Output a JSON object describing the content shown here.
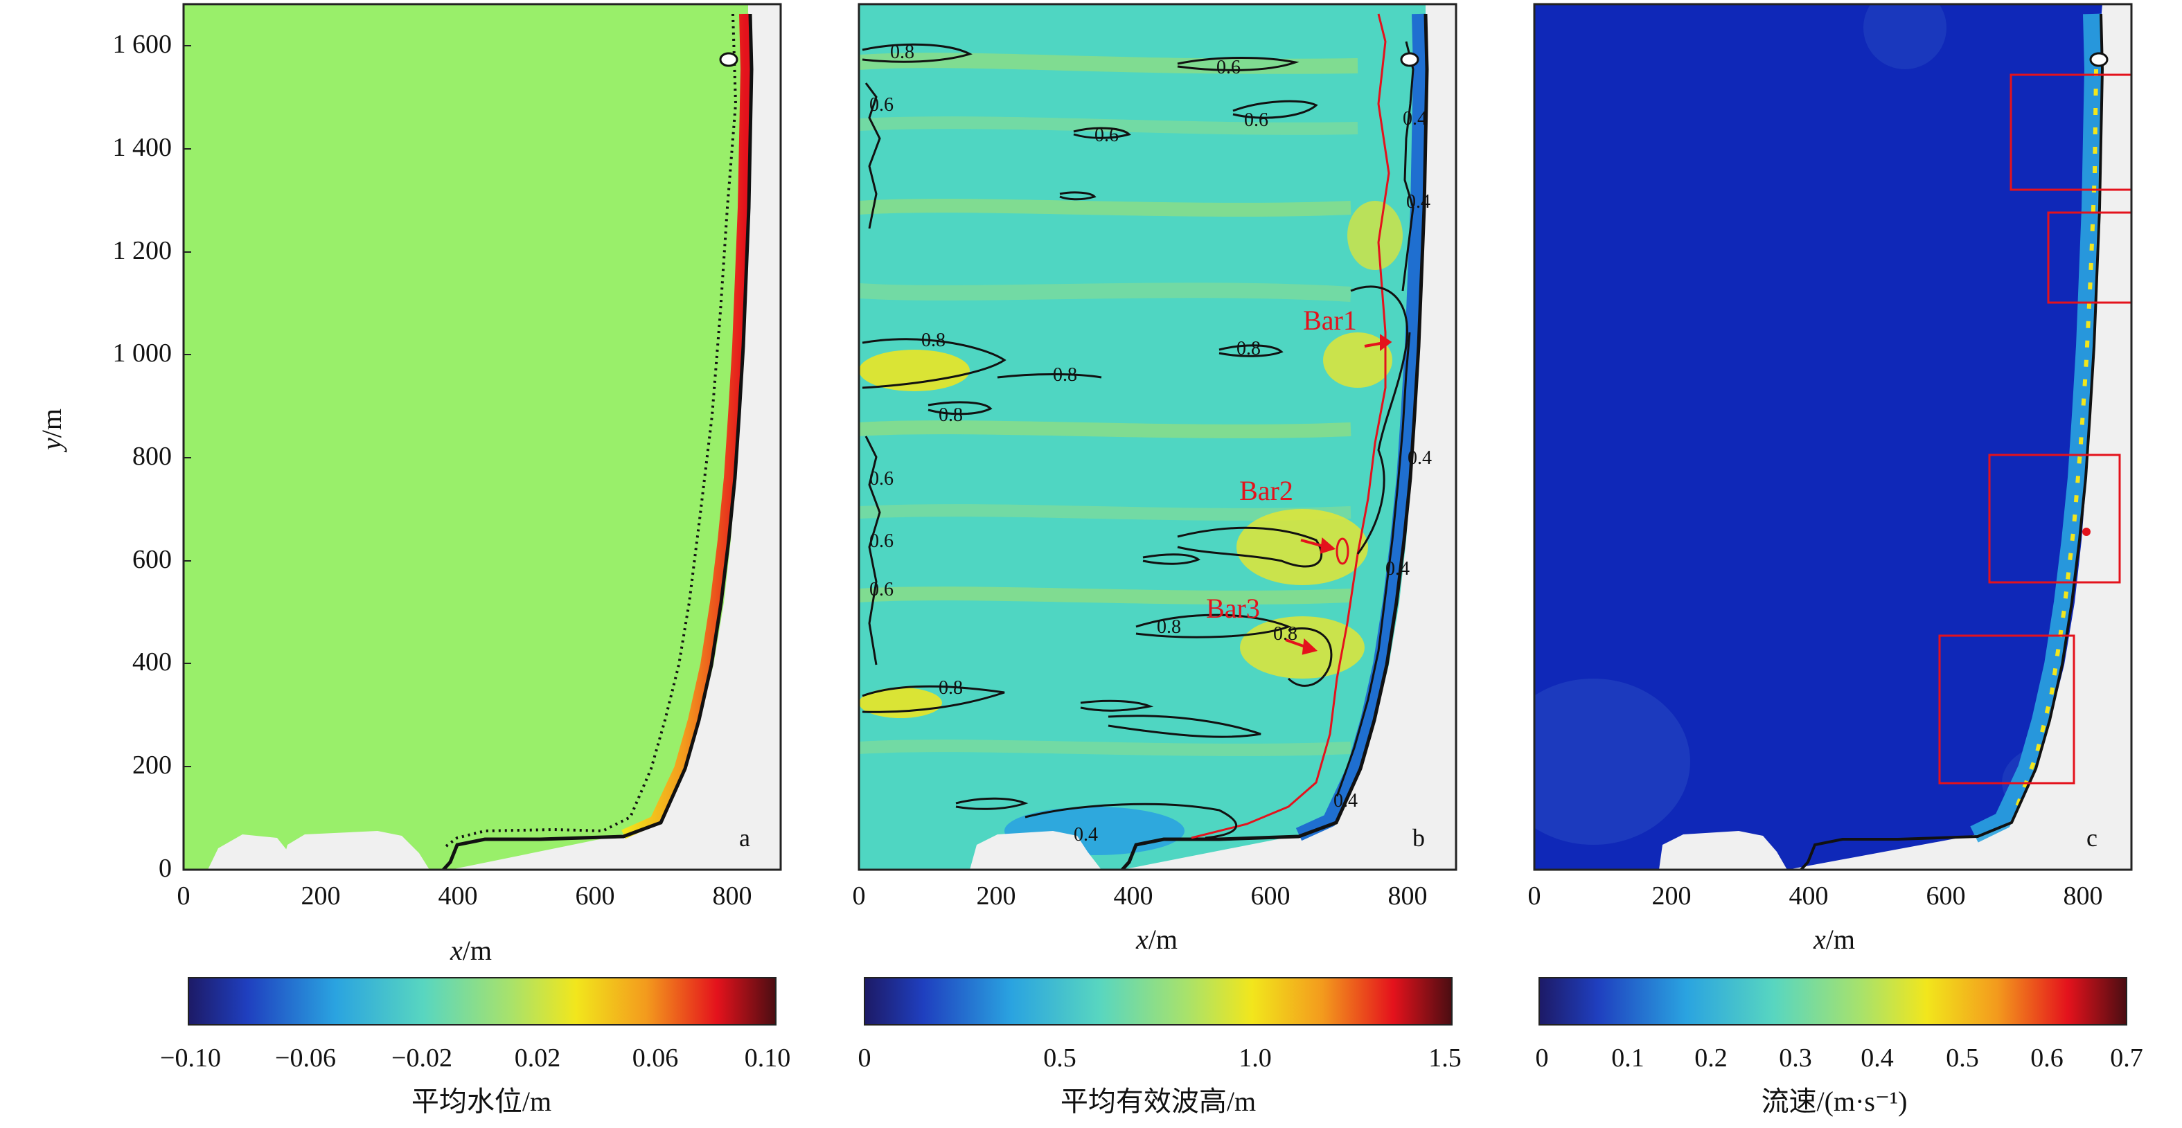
{
  "chart_data": [
    {
      "type": "heatmap",
      "panel_label": "a",
      "xlabel_var": "x",
      "xlabel_unit": "/m",
      "ylabel_var": "y",
      "ylabel_unit": "/m",
      "xlim": [
        0,
        870
      ],
      "ylim": [
        0,
        1690
      ],
      "x_ticks": [
        "0",
        "200",
        "400",
        "600",
        "800"
      ],
      "y_ticks": [
        "0",
        "200",
        "400",
        "600",
        "800",
        "1 000",
        "1 200",
        "1 400",
        "1 600"
      ],
      "background_color": "#99ef6a",
      "colorbar": {
        "label": "平均水位/m",
        "range": [
          -0.1,
          0.1
        ],
        "tick_labels": [
          "−0.10",
          "−0.06",
          "−0.02",
          "0.02",
          "0.06",
          "0.10"
        ]
      }
    },
    {
      "type": "heatmap",
      "panel_label": "b",
      "xlabel_var": "x",
      "xlabel_unit": "/m",
      "xlim": [
        0,
        870
      ],
      "ylim": [
        0,
        1690
      ],
      "x_ticks": [
        "0",
        "200",
        "400",
        "600",
        "800"
      ],
      "background_color": "#4fd6c2",
      "contour_labels": [
        "0.8",
        "0.6",
        "0.6",
        "0.6",
        "0.6",
        "0.8",
        "0.8",
        "0.8",
        "0.8",
        "0.8",
        "0.8",
        "0.8",
        "0.6",
        "0.6",
        "0.6",
        "0.4",
        "0.4",
        "0.4",
        "0.4",
        "0.4",
        "0.4"
      ],
      "annotations": [
        "Bar1",
        "Bar2",
        "Bar3"
      ],
      "colorbar": {
        "label": "平均有效波高/m",
        "range": [
          0,
          1.5
        ],
        "tick_labels": [
          "0",
          "0.5",
          "1.0",
          "1.5"
        ]
      }
    },
    {
      "type": "heatmap",
      "panel_label": "c",
      "xlabel_var": "x",
      "xlabel_unit": "/m",
      "xlim": [
        0,
        870
      ],
      "ylim": [
        0,
        1690
      ],
      "x_ticks": [
        "0",
        "200",
        "400",
        "600",
        "800"
      ],
      "background_color": "#0f28b8",
      "colorbar": {
        "label": "流速/(m·s⁻¹)",
        "range": [
          0,
          0.7
        ],
        "tick_labels": [
          "0",
          "0.1",
          "0.2",
          "0.3",
          "0.4",
          "0.5",
          "0.6",
          "0.7"
        ]
      }
    }
  ]
}
